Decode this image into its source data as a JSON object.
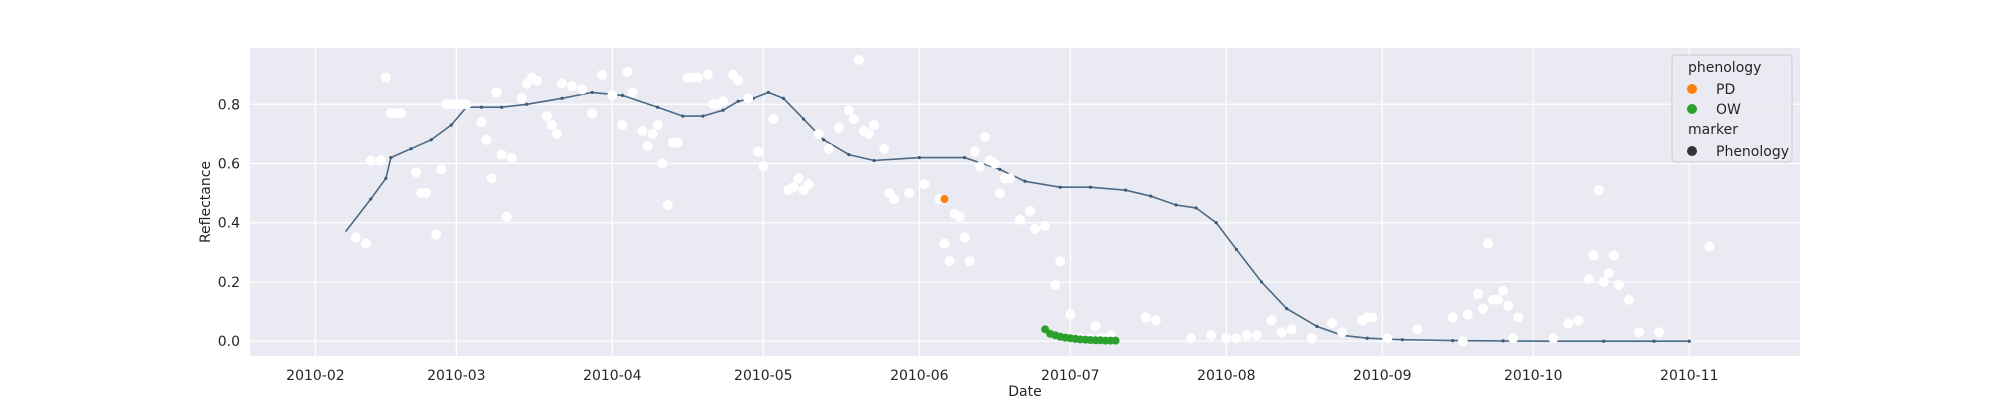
{
  "chart_data": {
    "type": "scatter",
    "title": "",
    "xlabel": "Date",
    "ylabel": "Reflectance",
    "x_axis": {
      "type": "date",
      "min": "2010-01-19",
      "max": "2010-11-23"
    },
    "ylim": [
      -0.05,
      0.99
    ],
    "x_ticks": [
      "2010-02-01",
      "2010-03-01",
      "2010-04-01",
      "2010-05-01",
      "2010-06-01",
      "2010-07-01",
      "2010-08-01",
      "2010-09-01",
      "2010-10-01",
      "2010-11-01"
    ],
    "x_tick_labels": [
      "2010-02",
      "2010-03",
      "2010-04",
      "2010-05",
      "2010-06",
      "2010-07",
      "2010-08",
      "2010-09",
      "2010-10",
      "2010-11"
    ],
    "y_ticks": [
      0.0,
      0.2,
      0.4,
      0.6,
      0.8
    ],
    "y_tick_labels": [
      "0.0",
      "0.2",
      "0.4",
      "0.6",
      "0.8"
    ],
    "grid": true,
    "legend": {
      "placement": "top-right",
      "title_hue": "phenology",
      "title_style": "marker",
      "entries": [
        {
          "name": "PD",
          "color": "#ff7f0e",
          "marker": "circle"
        },
        {
          "name": "OW",
          "color": "#2ca02c",
          "marker": "circle"
        },
        {
          "name": "Phenology",
          "color": "#333333",
          "marker": "circle"
        }
      ]
    },
    "colors": {
      "background": "#eaeaf2",
      "grid": "#ffffff",
      "raw_points": "#ffffff",
      "smooth_line": "#4c6a86",
      "smooth_line_start": "#555555",
      "PD": "#ff7f0e",
      "OW": "#2ca02c"
    },
    "series": [
      {
        "name": "raw",
        "kind": "scatter",
        "points": [
          [
            "2010-02-09",
            0.35
          ],
          [
            "2010-02-11",
            0.33
          ],
          [
            "2010-02-12",
            0.61
          ],
          [
            "2010-02-14",
            0.61
          ],
          [
            "2010-02-15",
            0.89
          ],
          [
            "2010-02-16",
            0.77
          ],
          [
            "2010-02-17",
            0.77
          ],
          [
            "2010-02-18",
            0.77
          ],
          [
            "2010-02-21",
            0.57
          ],
          [
            "2010-02-22",
            0.5
          ],
          [
            "2010-02-23",
            0.5
          ],
          [
            "2010-02-25",
            0.36
          ],
          [
            "2010-02-26",
            0.58
          ],
          [
            "2010-02-27",
            0.8
          ],
          [
            "2010-02-28",
            0.8
          ],
          [
            "2010-03-01",
            0.8
          ],
          [
            "2010-03-02",
            0.8
          ],
          [
            "2010-03-03",
            0.8
          ],
          [
            "2010-03-06",
            0.74
          ],
          [
            "2010-03-07",
            0.68
          ],
          [
            "2010-03-08",
            0.55
          ],
          [
            "2010-03-09",
            0.84
          ],
          [
            "2010-03-10",
            0.63
          ],
          [
            "2010-03-11",
            0.42
          ],
          [
            "2010-03-12",
            0.62
          ],
          [
            "2010-03-14",
            0.82
          ],
          [
            "2010-03-15",
            0.87
          ],
          [
            "2010-03-16",
            0.89
          ],
          [
            "2010-03-17",
            0.88
          ],
          [
            "2010-03-19",
            0.76
          ],
          [
            "2010-03-20",
            0.73
          ],
          [
            "2010-03-21",
            0.7
          ],
          [
            "2010-03-22",
            0.87
          ],
          [
            "2010-03-24",
            0.86
          ],
          [
            "2010-03-26",
            0.85
          ],
          [
            "2010-03-28",
            0.77
          ],
          [
            "2010-03-30",
            0.9
          ],
          [
            "2010-04-01",
            0.83
          ],
          [
            "2010-04-03",
            0.73
          ],
          [
            "2010-04-04",
            0.91
          ],
          [
            "2010-04-05",
            0.84
          ],
          [
            "2010-04-07",
            0.71
          ],
          [
            "2010-04-08",
            0.66
          ],
          [
            "2010-04-09",
            0.7
          ],
          [
            "2010-04-10",
            0.73
          ],
          [
            "2010-04-11",
            0.6
          ],
          [
            "2010-04-12",
            0.46
          ],
          [
            "2010-04-13",
            0.67
          ],
          [
            "2010-04-14",
            0.67
          ],
          [
            "2010-04-16",
            0.89
          ],
          [
            "2010-04-17",
            0.89
          ],
          [
            "2010-04-18",
            0.89
          ],
          [
            "2010-04-20",
            0.9
          ],
          [
            "2010-04-21",
            0.8
          ],
          [
            "2010-04-22",
            0.8
          ],
          [
            "2010-04-23",
            0.81
          ],
          [
            "2010-04-25",
            0.9
          ],
          [
            "2010-04-26",
            0.88
          ],
          [
            "2010-04-28",
            0.82
          ],
          [
            "2010-04-30",
            0.64
          ],
          [
            "2010-05-01",
            0.59
          ],
          [
            "2010-05-03",
            0.75
          ],
          [
            "2010-05-06",
            0.51
          ],
          [
            "2010-05-07",
            0.52
          ],
          [
            "2010-05-08",
            0.55
          ],
          [
            "2010-05-09",
            0.51
          ],
          [
            "2010-05-10",
            0.53
          ],
          [
            "2010-05-12",
            0.7
          ],
          [
            "2010-05-14",
            0.65
          ],
          [
            "2010-05-16",
            0.72
          ],
          [
            "2010-05-18",
            0.78
          ],
          [
            "2010-05-19",
            0.75
          ],
          [
            "2010-05-20",
            0.95
          ],
          [
            "2010-05-21",
            0.71
          ],
          [
            "2010-05-22",
            0.7
          ],
          [
            "2010-05-23",
            0.73
          ],
          [
            "2010-05-25",
            0.65
          ],
          [
            "2010-05-26",
            0.5
          ],
          [
            "2010-05-27",
            0.48
          ],
          [
            "2010-05-30",
            0.5
          ],
          [
            "2010-06-02",
            0.53
          ],
          [
            "2010-06-05",
            0.48
          ],
          [
            "2010-06-06",
            0.33
          ],
          [
            "2010-06-07",
            0.27
          ],
          [
            "2010-06-08",
            0.43
          ],
          [
            "2010-06-09",
            0.42
          ],
          [
            "2010-06-10",
            0.35
          ],
          [
            "2010-06-11",
            0.27
          ],
          [
            "2010-06-12",
            0.64
          ],
          [
            "2010-06-13",
            0.59
          ],
          [
            "2010-06-14",
            0.69
          ],
          [
            "2010-06-15",
            0.61
          ],
          [
            "2010-06-16",
            0.6
          ],
          [
            "2010-06-17",
            0.5
          ],
          [
            "2010-06-18",
            0.55
          ],
          [
            "2010-06-19",
            0.55
          ],
          [
            "2010-06-21",
            0.41
          ],
          [
            "2010-06-23",
            0.44
          ],
          [
            "2010-06-24",
            0.38
          ],
          [
            "2010-06-26",
            0.39
          ],
          [
            "2010-06-28",
            0.19
          ],
          [
            "2010-06-29",
            0.27
          ],
          [
            "2010-07-01",
            0.09
          ],
          [
            "2010-07-03",
            0.01
          ],
          [
            "2010-07-05",
            0.01
          ],
          [
            "2010-07-06",
            0.05
          ],
          [
            "2010-07-07",
            0.01
          ],
          [
            "2010-07-08",
            0.01
          ],
          [
            "2010-07-09",
            0.02
          ],
          [
            "2010-07-16",
            0.08
          ],
          [
            "2010-07-18",
            0.07
          ],
          [
            "2010-07-25",
            0.01
          ],
          [
            "2010-07-29",
            0.02
          ],
          [
            "2010-08-01",
            0.01
          ],
          [
            "2010-08-03",
            0.01
          ],
          [
            "2010-08-05",
            0.02
          ],
          [
            "2010-08-07",
            0.02
          ],
          [
            "2010-08-10",
            0.07
          ],
          [
            "2010-08-12",
            0.03
          ],
          [
            "2010-08-14",
            0.04
          ],
          [
            "2010-08-18",
            0.01
          ],
          [
            "2010-08-22",
            0.06
          ],
          [
            "2010-08-24",
            0.03
          ],
          [
            "2010-08-28",
            0.07
          ],
          [
            "2010-08-29",
            0.08
          ],
          [
            "2010-08-30",
            0.08
          ],
          [
            "2010-09-02",
            0.01
          ],
          [
            "2010-09-08",
            0.04
          ],
          [
            "2010-09-15",
            0.08
          ],
          [
            "2010-09-17",
            0.0
          ],
          [
            "2010-09-18",
            0.09
          ],
          [
            "2010-09-20",
            0.16
          ],
          [
            "2010-09-21",
            0.11
          ],
          [
            "2010-09-22",
            0.33
          ],
          [
            "2010-09-23",
            0.14
          ],
          [
            "2010-09-24",
            0.14
          ],
          [
            "2010-09-25",
            0.17
          ],
          [
            "2010-09-26",
            0.12
          ],
          [
            "2010-09-27",
            0.01
          ],
          [
            "2010-09-28",
            0.08
          ],
          [
            "2010-10-05",
            0.01
          ],
          [
            "2010-10-08",
            0.06
          ],
          [
            "2010-10-10",
            0.07
          ],
          [
            "2010-10-12",
            0.21
          ],
          [
            "2010-10-13",
            0.29
          ],
          [
            "2010-10-14",
            0.51
          ],
          [
            "2010-10-15",
            0.2
          ],
          [
            "2010-10-16",
            0.23
          ],
          [
            "2010-10-17",
            0.29
          ],
          [
            "2010-10-18",
            0.19
          ],
          [
            "2010-10-20",
            0.14
          ],
          [
            "2010-10-22",
            0.03
          ],
          [
            "2010-10-26",
            0.03
          ],
          [
            "2010-11-05",
            0.32
          ]
        ]
      },
      {
        "name": "smoothed",
        "kind": "line",
        "points": [
          [
            "2010-02-07",
            0.37
          ],
          [
            "2010-02-12",
            0.48
          ],
          [
            "2010-02-15",
            0.55
          ],
          [
            "2010-02-16",
            0.62
          ],
          [
            "2010-02-20",
            0.65
          ],
          [
            "2010-02-24",
            0.68
          ],
          [
            "2010-02-28",
            0.73
          ],
          [
            "2010-03-03",
            0.79
          ],
          [
            "2010-03-06",
            0.79
          ],
          [
            "2010-03-10",
            0.79
          ],
          [
            "2010-03-15",
            0.8
          ],
          [
            "2010-03-22",
            0.82
          ],
          [
            "2010-03-28",
            0.84
          ],
          [
            "2010-04-03",
            0.83
          ],
          [
            "2010-04-10",
            0.79
          ],
          [
            "2010-04-15",
            0.76
          ],
          [
            "2010-04-19",
            0.76
          ],
          [
            "2010-04-23",
            0.78
          ],
          [
            "2010-04-26",
            0.81
          ],
          [
            "2010-04-29",
            0.82
          ],
          [
            "2010-05-02",
            0.84
          ],
          [
            "2010-05-05",
            0.82
          ],
          [
            "2010-05-09",
            0.75
          ],
          [
            "2010-05-13",
            0.68
          ],
          [
            "2010-05-18",
            0.63
          ],
          [
            "2010-05-23",
            0.61
          ],
          [
            "2010-06-01",
            0.62
          ],
          [
            "2010-06-10",
            0.62
          ],
          [
            "2010-06-17",
            0.58
          ],
          [
            "2010-06-22",
            0.54
          ],
          [
            "2010-06-29",
            0.52
          ],
          [
            "2010-07-05",
            0.52
          ],
          [
            "2010-07-12",
            0.51
          ],
          [
            "2010-07-17",
            0.49
          ],
          [
            "2010-07-22",
            0.46
          ],
          [
            "2010-07-26",
            0.45
          ],
          [
            "2010-07-30",
            0.4
          ],
          [
            "2010-08-03",
            0.31
          ],
          [
            "2010-08-08",
            0.2
          ],
          [
            "2010-08-13",
            0.11
          ],
          [
            "2010-08-19",
            0.05
          ],
          [
            "2010-08-24",
            0.02
          ],
          [
            "2010-08-29",
            0.01
          ],
          [
            "2010-09-05",
            0.005
          ],
          [
            "2010-09-15",
            0.002
          ],
          [
            "2010-09-25",
            0.001
          ],
          [
            "2010-10-05",
            0.0
          ],
          [
            "2010-10-15",
            0.0
          ],
          [
            "2010-10-25",
            0.0
          ],
          [
            "2010-11-01",
            0.0
          ]
        ]
      },
      {
        "name": "PD",
        "kind": "scatter",
        "points": [
          [
            "2010-06-06",
            0.48
          ]
        ]
      },
      {
        "name": "OW",
        "kind": "scatter",
        "points": [
          [
            "2010-06-26",
            0.04
          ],
          [
            "2010-06-27",
            0.025
          ],
          [
            "2010-06-28",
            0.02
          ],
          [
            "2010-06-29",
            0.015
          ],
          [
            "2010-06-30",
            0.012
          ],
          [
            "2010-07-01",
            0.01
          ],
          [
            "2010-07-02",
            0.008
          ],
          [
            "2010-07-03",
            0.006
          ],
          [
            "2010-07-04",
            0.005
          ],
          [
            "2010-07-05",
            0.004
          ],
          [
            "2010-07-06",
            0.003
          ],
          [
            "2010-07-07",
            0.003
          ],
          [
            "2010-07-08",
            0.002
          ],
          [
            "2010-07-09",
            0.002
          ],
          [
            "2010-07-10",
            0.002
          ]
        ]
      }
    ]
  }
}
